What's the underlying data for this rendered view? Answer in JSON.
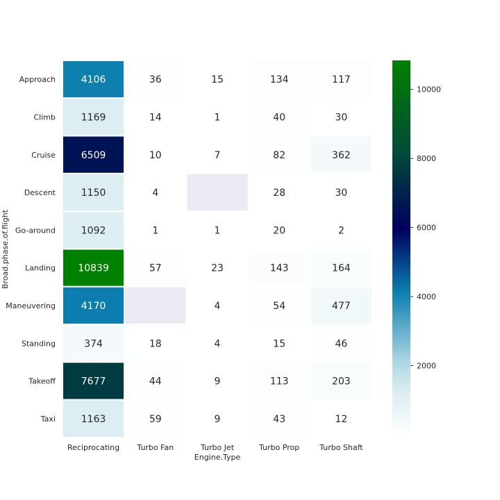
{
  "chart_data": {
    "type": "heatmap",
    "title": "",
    "xlabel": "Engine.Type",
    "ylabel": "Broad.phase.of.flight",
    "x_categories": [
      "Reciprocating",
      "Turbo Fan",
      "Turbo Jet",
      "Turbo Prop",
      "Turbo Shaft"
    ],
    "y_categories": [
      "Approach",
      "Climb",
      "Cruise",
      "Descent",
      "Go-around",
      "Landing",
      "Maneuvering",
      "Standing",
      "Takeoff",
      "Taxi"
    ],
    "values": [
      [
        4106,
        36,
        15,
        134,
        117
      ],
      [
        1169,
        14,
        1,
        40,
        30
      ],
      [
        6509,
        10,
        7,
        82,
        362
      ],
      [
        1150,
        4,
        null,
        28,
        30
      ],
      [
        1092,
        1,
        1,
        20,
        2
      ],
      [
        10839,
        57,
        23,
        143,
        164
      ],
      [
        4170,
        null,
        4,
        54,
        477
      ],
      [
        374,
        18,
        4,
        15,
        46
      ],
      [
        7677,
        44,
        9,
        113,
        203
      ],
      [
        1163,
        59,
        9,
        43,
        12
      ]
    ],
    "colormap": "ocean_r",
    "missing_color": "#eaeaf2",
    "vmin": 1,
    "vmax": 10839,
    "colorbar_ticks": [
      2000,
      4000,
      6000,
      8000,
      10000
    ],
    "annotations": true
  }
}
